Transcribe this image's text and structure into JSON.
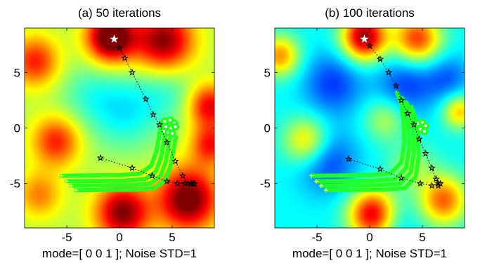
{
  "figure": {
    "panels": [
      {
        "title": "(a) 50 iterations",
        "xlabel": "mode=[ 0 0 1 ]; Noise STD=1"
      },
      {
        "title": "(b) 100 iterations",
        "xlabel": "mode=[ 0 0 1 ]; Noise STD=1"
      }
    ]
  },
  "colors": {
    "colormap": [
      "#00008f",
      "#0000ff",
      "#0080ff",
      "#00ffff",
      "#80ff80",
      "#ffff00",
      "#ff8000",
      "#ff0000",
      "#800000"
    ],
    "trajectory": "#22ff22",
    "star_marker": "#000000",
    "start_marker": "#ffffff",
    "cross_marker": "#ffff66",
    "dotted_line": "#000000"
  },
  "chart_data": [
    {
      "type": "heatmap",
      "title": "(a) 50 iterations",
      "xlabel": "mode=[ 0 0 1 ]; Noise STD=1",
      "ylabel": "",
      "xlim": [
        -9,
        9
      ],
      "ylim": [
        -9,
        9
      ],
      "xticks": [
        -5,
        0,
        5
      ],
      "yticks": [
        -5,
        0,
        5
      ],
      "tick_labels_x": [
        "-5",
        "0",
        "5"
      ],
      "tick_labels_y": [
        "-5",
        "0",
        "5"
      ],
      "grid": false,
      "colormap": "jet",
      "field_baseline": 0.55,
      "surface_peaks": [
        {
          "x": -0.8,
          "y": 8.2,
          "sigma": 1.6,
          "amp": 0.55
        },
        {
          "x": 4.2,
          "y": 7.8,
          "sigma": 2.0,
          "amp": 0.45
        },
        {
          "x": -8.0,
          "y": 6.0,
          "sigma": 1.6,
          "amp": 0.3
        },
        {
          "x": 8.5,
          "y": 2.0,
          "sigma": 1.4,
          "amp": 0.35
        },
        {
          "x": -6.0,
          "y": -1.2,
          "sigma": 1.6,
          "amp": 0.3
        },
        {
          "x": 0.3,
          "y": -7.6,
          "sigma": 1.8,
          "amp": 0.45
        },
        {
          "x": 6.5,
          "y": -6.4,
          "sigma": 2.0,
          "amp": 0.5
        },
        {
          "x": 8.6,
          "y": -1.5,
          "sigma": 1.3,
          "amp": 0.3
        },
        {
          "x": -7.6,
          "y": -6.0,
          "sigma": 1.5,
          "amp": 0.2
        },
        {
          "x": 0.5,
          "y": 1.5,
          "sigma": 2.3,
          "amp": -0.18
        },
        {
          "x": 4.5,
          "y": 3.5,
          "sigma": 2.0,
          "amp": -0.12
        },
        {
          "x": -3.0,
          "y": 3.0,
          "sigma": 2.0,
          "amp": -0.1
        }
      ],
      "series": [
        {
          "kind": "path-stars",
          "points": [
            [
              -0.5,
              8.0
            ],
            [
              0.0,
              7.2
            ],
            [
              0.5,
              6.3
            ],
            [
              1.2,
              5.0
            ],
            [
              2.5,
              2.6
            ],
            [
              3.2,
              1.2
            ],
            [
              3.8,
              0.3
            ],
            [
              4.5,
              -1.3
            ],
            [
              5.3,
              -3.0
            ],
            [
              6.0,
              -4.3
            ],
            [
              6.5,
              -5.0
            ],
            [
              6.8,
              -5.0
            ],
            [
              7.0,
              -5.0
            ]
          ]
        },
        {
          "kind": "path-stars",
          "points": [
            [
              -1.8,
              -2.7
            ],
            [
              1.2,
              -3.6
            ],
            [
              3.1,
              -4.3
            ],
            [
              4.5,
              -4.8
            ],
            [
              5.5,
              -5.0
            ],
            [
              6.2,
              -5.0
            ],
            [
              6.8,
              -5.0
            ],
            [
              7.1,
              -5.0
            ]
          ]
        },
        {
          "kind": "trajectory",
          "start_y": [
            -4.3,
            -4.8,
            -5.2,
            -5.6
          ],
          "points": [
            [
              -5.5,
              0.0
            ],
            [
              0.0,
              0.05
            ],
            [
              2.0,
              0.2
            ],
            [
              3.0,
              0.9
            ],
            [
              3.5,
              2.2
            ],
            [
              3.8,
              3.8
            ],
            [
              4.0,
              4.8
            ]
          ]
        },
        {
          "kind": "cluster",
          "points": [
            [
              4.3,
              0.6
            ],
            [
              4.8,
              0.7
            ],
            [
              5.2,
              0.4
            ],
            [
              4.4,
              0.1
            ],
            [
              4.9,
              0.0
            ],
            [
              5.3,
              0.1
            ],
            [
              4.6,
              -0.4
            ],
            [
              5.0,
              -0.5
            ],
            [
              4.2,
              -0.3
            ]
          ]
        }
      ]
    },
    {
      "type": "heatmap",
      "title": "(b) 100 iterations",
      "xlabel": "mode=[ 0 0 1 ]; Noise STD=1",
      "ylabel": "",
      "xlim": [
        -9,
        9
      ],
      "ylim": [
        -9,
        9
      ],
      "xticks": [
        -5,
        0,
        5
      ],
      "yticks": [
        -5,
        0,
        5
      ],
      "tick_labels_x": [
        "-5",
        "0",
        "5"
      ],
      "tick_labels_y": [
        "-5",
        "0",
        "5"
      ],
      "grid": false,
      "colormap": "jet",
      "field_baseline": 0.38,
      "surface_peaks": [
        {
          "x": -0.5,
          "y": 8.2,
          "sigma": 1.5,
          "amp": 0.6
        },
        {
          "x": 4.5,
          "y": 8.0,
          "sigma": 1.6,
          "amp": 0.45
        },
        {
          "x": -8.5,
          "y": 6.5,
          "sigma": 1.3,
          "amp": 0.35
        },
        {
          "x": -6.0,
          "y": -1.2,
          "sigma": 1.5,
          "amp": 0.3
        },
        {
          "x": 0.3,
          "y": -7.8,
          "sigma": 1.6,
          "amp": 0.55
        },
        {
          "x": 7.0,
          "y": -6.5,
          "sigma": 1.6,
          "amp": 0.4
        },
        {
          "x": 8.5,
          "y": 1.5,
          "sigma": 1.1,
          "amp": 0.3
        },
        {
          "x": 1.5,
          "y": 0.8,
          "sigma": 1.4,
          "amp": 0.18
        },
        {
          "x": 4.0,
          "y": -3.5,
          "sigma": 1.5,
          "amp": 0.15
        },
        {
          "x": -3.5,
          "y": 4.0,
          "sigma": 2.0,
          "amp": -0.2
        },
        {
          "x": -4.0,
          "y": -3.0,
          "sigma": 2.0,
          "amp": -0.2
        },
        {
          "x": 3.5,
          "y": 4.0,
          "sigma": 2.0,
          "amp": -0.2
        },
        {
          "x": 7.5,
          "y": 4.5,
          "sigma": 1.5,
          "amp": -0.15
        },
        {
          "x": 2.0,
          "y": -8.5,
          "sigma": 1.5,
          "amp": -0.1
        }
      ],
      "series": [
        {
          "kind": "path-stars",
          "points": [
            [
              -0.5,
              8.0
            ],
            [
              0.0,
              7.4
            ],
            [
              1.0,
              6.2
            ],
            [
              1.8,
              5.0
            ],
            [
              2.5,
              3.8
            ],
            [
              3.0,
              2.5
            ],
            [
              3.6,
              1.3
            ],
            [
              4.2,
              0.3
            ],
            [
              4.7,
              -1.0
            ],
            [
              5.3,
              -2.3
            ],
            [
              5.9,
              -3.6
            ],
            [
              6.3,
              -4.6
            ],
            [
              6.5,
              -5.2
            ],
            [
              6.7,
              -5.0
            ]
          ]
        },
        {
          "kind": "path-stars",
          "points": [
            [
              -2.0,
              -2.8
            ],
            [
              1.0,
              -3.7
            ],
            [
              3.0,
              -4.5
            ],
            [
              4.8,
              -5.0
            ],
            [
              5.9,
              -5.2
            ],
            [
              6.5,
              -5.0
            ]
          ]
        },
        {
          "kind": "trajectory",
          "start_y": [
            -4.3,
            -4.8,
            -5.2,
            -5.6
          ],
          "points": [
            [
              -5.5,
              0.0
            ],
            [
              0.0,
              0.05
            ],
            [
              2.0,
              0.2
            ],
            [
              3.0,
              1.2
            ],
            [
              3.3,
              3.0
            ],
            [
              3.2,
              5.0
            ],
            [
              3.0,
              6.5
            ],
            [
              2.6,
              7.5
            ]
          ]
        },
        {
          "kind": "cluster",
          "points": [
            [
              4.6,
              0.4
            ],
            [
              5.0,
              0.5
            ],
            [
              5.3,
              0.2
            ],
            [
              4.8,
              -0.1
            ],
            [
              5.2,
              -0.3
            ]
          ]
        }
      ]
    }
  ]
}
